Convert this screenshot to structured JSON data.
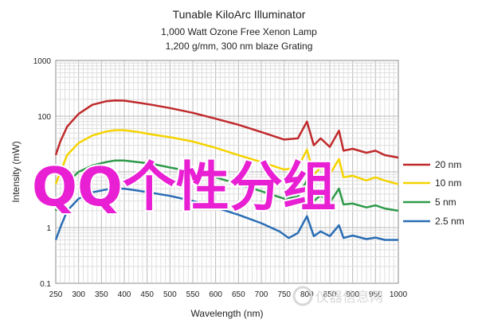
{
  "chart_data": {
    "type": "line",
    "title": "Tunable KiloArc Illuminator",
    "subtitle_lines": [
      "1,000 Watt Ozone Free Xenon Lamp",
      "1,200 g/mm, 300 nm blaze Grating"
    ],
    "xlabel": "Wavelength (nm)",
    "ylabel": "Intensity (mW)",
    "xlim": [
      250,
      1000
    ],
    "ylim": [
      0.1,
      1000
    ],
    "y_scale": "log",
    "grid": true,
    "x_ticks": [
      "250",
      "300",
      "350",
      "400",
      "450",
      "500",
      "550",
      "600",
      "650",
      "700",
      "750",
      "800",
      "850",
      "900",
      "950",
      "1000"
    ],
    "y_ticks": [
      {
        "value": 0.1,
        "label": "0.1"
      },
      {
        "value": 1,
        "label": "1"
      },
      {
        "value": 10,
        "label": "10"
      },
      {
        "value": 100,
        "label": "100"
      },
      {
        "value": 1000,
        "label": "1000"
      }
    ],
    "legend_position": "right",
    "series": [
      {
        "name": "20 nm",
        "color": "#c0292b",
        "points": [
          [
            250,
            20
          ],
          [
            260,
            35
          ],
          [
            275,
            65
          ],
          [
            300,
            110
          ],
          [
            330,
            160
          ],
          [
            360,
            185
          ],
          [
            380,
            192
          ],
          [
            400,
            190
          ],
          [
            430,
            175
          ],
          [
            460,
            160
          ],
          [
            500,
            140
          ],
          [
            550,
            115
          ],
          [
            600,
            90
          ],
          [
            650,
            70
          ],
          [
            700,
            52
          ],
          [
            750,
            38
          ],
          [
            780,
            40
          ],
          [
            800,
            80
          ],
          [
            815,
            30
          ],
          [
            830,
            40
          ],
          [
            850,
            28
          ],
          [
            870,
            55
          ],
          [
            880,
            24
          ],
          [
            900,
            26
          ],
          [
            930,
            22
          ],
          [
            950,
            24
          ],
          [
            970,
            20
          ],
          [
            1000,
            18
          ]
        ]
      },
      {
        "name": "10 nm",
        "color": "#f5d300",
        "points": [
          [
            250,
            6
          ],
          [
            260,
            10
          ],
          [
            275,
            20
          ],
          [
            300,
            33
          ],
          [
            330,
            45
          ],
          [
            360,
            53
          ],
          [
            380,
            56
          ],
          [
            400,
            56
          ],
          [
            430,
            52
          ],
          [
            460,
            47
          ],
          [
            500,
            42
          ],
          [
            550,
            35
          ],
          [
            600,
            27
          ],
          [
            650,
            20
          ],
          [
            700,
            15
          ],
          [
            750,
            11
          ],
          [
            780,
            12
          ],
          [
            800,
            25
          ],
          [
            815,
            9
          ],
          [
            830,
            12
          ],
          [
            850,
            9
          ],
          [
            870,
            17
          ],
          [
            880,
            8
          ],
          [
            900,
            8.5
          ],
          [
            930,
            7
          ],
          [
            950,
            8
          ],
          [
            970,
            7
          ],
          [
            1000,
            6
          ]
        ]
      },
      {
        "name": "5 nm",
        "color": "#2e9a4a",
        "points": [
          [
            250,
            2
          ],
          [
            260,
            3.5
          ],
          [
            275,
            6.5
          ],
          [
            300,
            10
          ],
          [
            330,
            13
          ],
          [
            360,
            15
          ],
          [
            380,
            16
          ],
          [
            400,
            16
          ],
          [
            430,
            15
          ],
          [
            460,
            14
          ],
          [
            500,
            12
          ],
          [
            550,
            10
          ],
          [
            600,
            8
          ],
          [
            650,
            6
          ],
          [
            700,
            4.5
          ],
          [
            750,
            3.3
          ],
          [
            780,
            3.6
          ],
          [
            800,
            7
          ],
          [
            815,
            3
          ],
          [
            830,
            3.8
          ],
          [
            850,
            2.8
          ],
          [
            870,
            5
          ],
          [
            880,
            2.6
          ],
          [
            900,
            2.7
          ],
          [
            930,
            2.3
          ],
          [
            950,
            2.5
          ],
          [
            970,
            2.2
          ],
          [
            1000,
            2
          ]
        ]
      },
      {
        "name": "2.5 nm",
        "color": "#2a6db5",
        "points": [
          [
            250,
            0.6
          ],
          [
            260,
            1
          ],
          [
            275,
            2
          ],
          [
            300,
            3.3
          ],
          [
            330,
            4.3
          ],
          [
            360,
            4.8
          ],
          [
            380,
            5
          ],
          [
            400,
            5
          ],
          [
            430,
            4.6
          ],
          [
            460,
            4.2
          ],
          [
            500,
            3.7
          ],
          [
            550,
            3
          ],
          [
            600,
            2.3
          ],
          [
            650,
            1.7
          ],
          [
            700,
            1.2
          ],
          [
            740,
            0.85
          ],
          [
            760,
            0.65
          ],
          [
            780,
            0.8
          ],
          [
            800,
            1.6
          ],
          [
            815,
            0.7
          ],
          [
            830,
            0.85
          ],
          [
            850,
            0.7
          ],
          [
            870,
            1.1
          ],
          [
            880,
            0.65
          ],
          [
            900,
            0.72
          ],
          [
            930,
            0.62
          ],
          [
            950,
            0.66
          ],
          [
            970,
            0.6
          ],
          [
            1000,
            0.6
          ]
        ]
      }
    ]
  },
  "overlay": {
    "text": "QQ个性分组",
    "color": "#e81fd3"
  },
  "watermark": {
    "text": "仪器信息网",
    "color": "#d8d8d8"
  }
}
